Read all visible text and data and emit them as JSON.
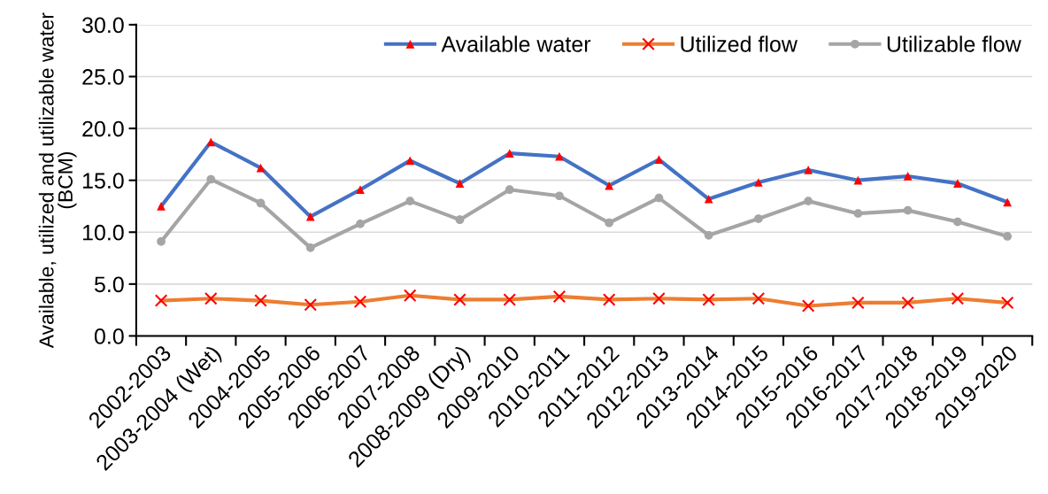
{
  "chart_data": {
    "type": "line",
    "ylabel": "Available, utilized and utilizable water\n(BCM)",
    "categories": [
      "2002-2003",
      "2003-2004 (Wet)",
      "2004-2005",
      "2005-2006",
      "2006-2007",
      "2007-2008",
      "2008-2009 (Dry)",
      "2009-2010",
      "2010-2011",
      "2011-2012",
      "2012-2013",
      "2013-2014",
      "2014-2015",
      "2015-2016",
      "2016-2017",
      "2017-2018",
      "2018-2019",
      "2019-2020"
    ],
    "series": [
      {
        "name": "Available water",
        "color": "#4472c4",
        "marker": "triangle",
        "colors": [
          "#ff0000",
          "#ff0000",
          "#ff0000",
          "#ff0000",
          "#ff0000",
          "#ff0000",
          "#ff0000",
          "#ff0000",
          "#ff0000",
          "#ff0000",
          "#ff0000",
          "#ff0000",
          "#ff0000",
          "#ff0000",
          "#ff0000",
          "#ff0000",
          "#ff0000",
          "#ff0000"
        ],
        "values": [
          12.5,
          18.7,
          16.2,
          11.5,
          14.1,
          16.9,
          14.7,
          17.6,
          17.3,
          14.5,
          17.0,
          13.2,
          14.8,
          16.0,
          15.0,
          15.4,
          14.7,
          12.9
        ]
      },
      {
        "name": "Utilized flow",
        "color": "#ed7d31",
        "marker": "cross",
        "colors": [
          "#ff0000",
          "#ff0000",
          "#ff0000",
          "#ff0000",
          "#ff0000",
          "#ff0000",
          "#ff0000",
          "#ff0000",
          "#ff0000",
          "#ff0000",
          "#ff0000",
          "#ff0000",
          "#ff0000",
          "#ff0000",
          "#ff0000",
          "#ff0000",
          "#ff0000",
          "#ff0000"
        ],
        "values": [
          3.4,
          3.6,
          3.4,
          3.0,
          3.3,
          3.9,
          3.5,
          3.5,
          3.8,
          3.5,
          3.6,
          3.5,
          3.6,
          2.9,
          3.2,
          3.2,
          3.6,
          3.2
        ]
      },
      {
        "name": "Utilizable flow",
        "color": "#a5a5a5",
        "marker": "circle",
        "values": [
          9.1,
          15.1,
          12.8,
          8.5,
          10.8,
          13.0,
          11.2,
          14.1,
          13.5,
          10.9,
          13.3,
          9.7,
          11.3,
          13.0,
          11.8,
          12.1,
          11.0,
          9.6
        ]
      }
    ],
    "ylim": [
      0,
      30
    ],
    "yticks": [
      {
        "value": 0,
        "label": "0.0"
      },
      {
        "value": 5,
        "label": "5.0"
      },
      {
        "value": 10,
        "label": "10.0"
      },
      {
        "value": 15,
        "label": "15.0"
      },
      {
        "value": 20,
        "label": "20.0"
      },
      {
        "value": 25,
        "label": "25.0"
      },
      {
        "value": 30,
        "label": "30.0"
      }
    ],
    "grid": "y",
    "legend": "top right"
  }
}
